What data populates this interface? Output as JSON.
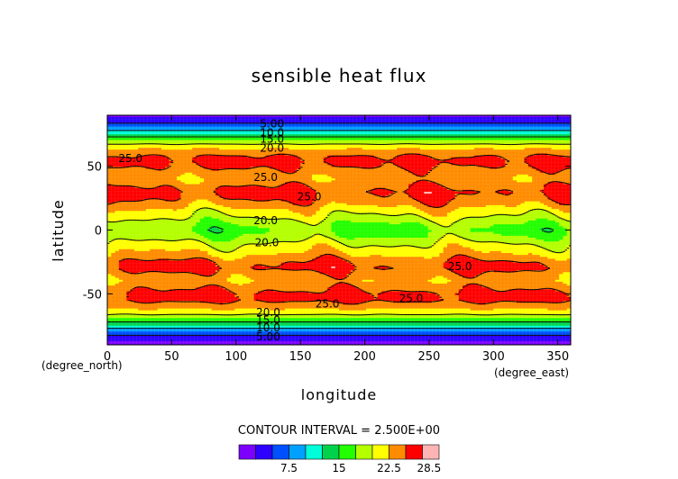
{
  "chart_data": {
    "type": "heatmap",
    "title": "sensible heat flux",
    "xlabel": "longitude",
    "ylabel": "latitude",
    "x_unit": "(degree_east)",
    "y_unit": "(degree_north)",
    "xlim": [
      0,
      360
    ],
    "ylim": [
      -90,
      90
    ],
    "x_ticks": [
      0,
      50,
      100,
      150,
      200,
      250,
      300,
      350
    ],
    "y_ticks": [
      -50,
      0,
      50
    ],
    "contour_interval_text": "CONTOUR INTERVAL = 2.500E+00",
    "contour_labels": [
      {
        "text": "5.00",
        "lon": 128,
        "lat": 84
      },
      {
        "text": "10.0",
        "lon": 128,
        "lat": 77
      },
      {
        "text": "15.0",
        "lon": 128,
        "lat": 72
      },
      {
        "text": "20.0",
        "lon": 128,
        "lat": 65
      },
      {
        "text": "25.0",
        "lon": 18,
        "lat": 57
      },
      {
        "text": "25.0",
        "lon": 123,
        "lat": 42
      },
      {
        "text": "25.0",
        "lon": 157,
        "lat": 27
      },
      {
        "text": "20.0",
        "lon": 123,
        "lat": 8
      },
      {
        "text": "20.0",
        "lon": 124,
        "lat": -9
      },
      {
        "text": "25.0",
        "lon": 274,
        "lat": -28
      },
      {
        "text": "25.0",
        "lon": 236,
        "lat": -53
      },
      {
        "text": "25.0",
        "lon": 171,
        "lat": -57
      },
      {
        "text": "20.0",
        "lon": 125,
        "lat": -64
      },
      {
        "text": "15.0",
        "lon": 125,
        "lat": -70
      },
      {
        "text": "10.0",
        "lon": 125,
        "lat": -76
      },
      {
        "text": "5.00",
        "lon": 125,
        "lat": -83
      }
    ],
    "zonal_profile": {
      "lat": [
        90,
        85,
        80,
        75,
        70,
        66,
        62,
        58,
        54,
        50,
        45,
        40,
        35,
        30,
        25,
        20,
        15,
        10,
        5,
        0,
        -5,
        -10,
        -15,
        -20,
        -25,
        -30,
        -35,
        -40,
        -45,
        -50,
        -55,
        -60,
        -65,
        -70,
        -75,
        -80,
        -85,
        -90
      ],
      "value": [
        2,
        4,
        8,
        13,
        18,
        21,
        23.5,
        25,
        25.5,
        25.2,
        24,
        23,
        24.5,
        25.5,
        25,
        23.5,
        21.5,
        20,
        18,
        17,
        18,
        20,
        21.5,
        23,
        25,
        25.5,
        24,
        23,
        24.5,
        25.5,
        25.5,
        23.5,
        21,
        17,
        12,
        7,
        3,
        1
      ]
    },
    "colorbar": {
      "levels": [
        2.5,
        5,
        7.5,
        10,
        12.5,
        15,
        17.5,
        20,
        22.5,
        25,
        27.5,
        30
      ],
      "colors": [
        "#7d00ff",
        "#2d00ff",
        "#0050ff",
        "#00a0ff",
        "#00ffd9",
        "#00d24b",
        "#23ff00",
        "#b4ff00",
        "#ffff00",
        "#ff8c00",
        "#ff0000",
        "#ffb4b4"
      ],
      "tick_labels": [
        {
          "value": 7.5,
          "text": "7.5"
        },
        {
          "value": 15,
          "text": "15"
        },
        {
          "value": 22.5,
          "text": "22.5"
        },
        {
          "value": 28.5,
          "text": "28.5"
        }
      ]
    }
  }
}
